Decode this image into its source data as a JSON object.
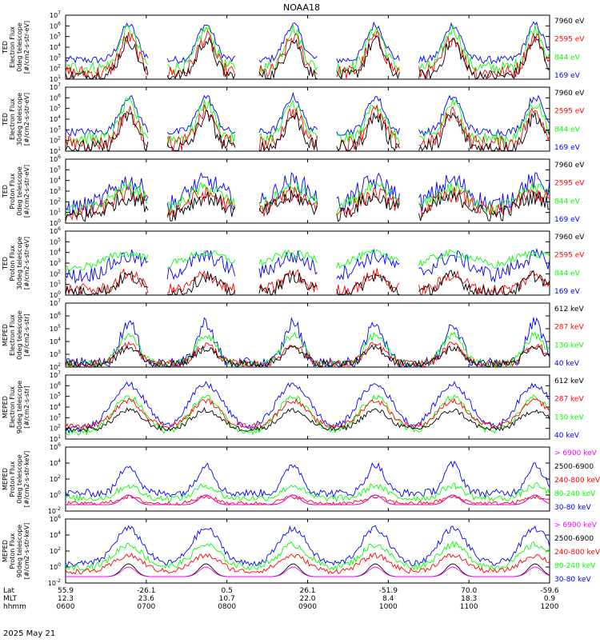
{
  "title": "NOAA18",
  "date_label": "2025 May 21",
  "footer": {
    "rows": [
      {
        "label": "Lat",
        "values": [
          "55.9",
          "-26.1",
          "0.5",
          "26.1",
          "-51.9",
          "70.0",
          "-59.6"
        ]
      },
      {
        "label": "MLT",
        "values": [
          "12.3",
          "23.6",
          "10.7",
          "22.0",
          "8.4",
          "18.3",
          "0.9"
        ]
      },
      {
        "label": "hhmm",
        "values": [
          "0600",
          "0700",
          "0800",
          "0900",
          "1000",
          "1100",
          "1200"
        ]
      }
    ]
  },
  "colors": {
    "black": "#000000",
    "red": "#ff0000",
    "green": "#00ff00",
    "blue": "#0000ff",
    "magenta": "#ff00ff"
  },
  "chart_data": [
    {
      "type": "line",
      "ylabel": [
        "TED",
        "Electron Flux",
        "0deg telescope",
        "[#/cm2-s-str-eV]"
      ],
      "yscale": "log",
      "ylim_exp": [
        1,
        7
      ],
      "yticks_exp": [
        1,
        2,
        3,
        4,
        5,
        6,
        7
      ],
      "xlim": [
        "0600",
        "1200"
      ],
      "series": [
        {
          "name": "7960 eV",
          "color": "#000000"
        },
        {
          "name": "2595 eV",
          "color": "#ff0000"
        },
        {
          "name": "844 eV",
          "color": "#00ff00"
        },
        {
          "name": "169 eV",
          "color": "#0000ff"
        }
      ]
    },
    {
      "type": "line",
      "ylabel": [
        "TED",
        "Electron Flux",
        "30deg telescope",
        "[#/cm2-s-str-eV]"
      ],
      "yscale": "log",
      "ylim_exp": [
        1,
        7
      ],
      "yticks_exp": [
        1,
        2,
        3,
        4,
        5,
        6,
        7
      ],
      "xlim": [
        "0600",
        "1200"
      ],
      "series": [
        {
          "name": "7960 eV",
          "color": "#000000"
        },
        {
          "name": "2595 eV",
          "color": "#ff0000"
        },
        {
          "name": "844 eV",
          "color": "#00ff00"
        },
        {
          "name": "169 eV",
          "color": "#0000ff"
        }
      ]
    },
    {
      "type": "line",
      "ylabel": [
        "TED",
        "Proton Flux",
        "0deg telescope",
        "[#/cm2-s-str-eV]"
      ],
      "yscale": "log",
      "ylim_exp": [
        0,
        6
      ],
      "yticks_exp": [
        0,
        1,
        2,
        3,
        4,
        5,
        6
      ],
      "xlim": [
        "0600",
        "1200"
      ],
      "series": [
        {
          "name": "7960 eV",
          "color": "#000000"
        },
        {
          "name": "2595 eV",
          "color": "#ff0000"
        },
        {
          "name": "844 eV",
          "color": "#00ff00"
        },
        {
          "name": "169 eV",
          "color": "#0000ff"
        }
      ]
    },
    {
      "type": "line",
      "ylabel": [
        "TED",
        "Proton Flux",
        "30deg telescope",
        "[#/cm2-s-str-eV]"
      ],
      "yscale": "log",
      "ylim_exp": [
        0,
        6
      ],
      "yticks_exp": [
        0,
        1,
        2,
        3,
        4,
        5,
        6
      ],
      "xlim": [
        "0600",
        "1200"
      ],
      "series": [
        {
          "name": "7960 eV",
          "color": "#000000"
        },
        {
          "name": "2595 eV",
          "color": "#ff0000"
        },
        {
          "name": "844 eV",
          "color": "#00ff00"
        },
        {
          "name": "169 eV",
          "color": "#0000ff"
        }
      ]
    },
    {
      "type": "line",
      "ylabel": [
        "MEPED",
        "Electron Flux",
        "0deg telescope",
        "[#/cm2-s-str]"
      ],
      "yscale": "log",
      "ylim_exp": [
        2,
        7
      ],
      "yticks_exp": [
        2,
        3,
        4,
        5,
        6,
        7
      ],
      "xlim": [
        "0600",
        "1200"
      ],
      "series": [
        {
          "name": "612 keV",
          "color": "#000000"
        },
        {
          "name": "287 keV",
          "color": "#ff0000"
        },
        {
          "name": "130 keV",
          "color": "#00ff00"
        },
        {
          "name": "40 keV",
          "color": "#0000ff"
        }
      ]
    },
    {
      "type": "line",
      "ylabel": [
        "MEPED",
        "Electron Flux",
        "90deg telescope",
        "[#/cm2-s-str]"
      ],
      "yscale": "log",
      "ylim_exp": [
        1,
        7
      ],
      "yticks_exp": [
        1,
        2,
        3,
        4,
        5,
        6,
        7
      ],
      "xlim": [
        "0600",
        "1200"
      ],
      "series": [
        {
          "name": "612 keV",
          "color": "#000000"
        },
        {
          "name": "287 keV",
          "color": "#ff0000"
        },
        {
          "name": "130 keV",
          "color": "#00ff00"
        },
        {
          "name": "40 keV",
          "color": "#0000ff"
        }
      ]
    },
    {
      "type": "line",
      "ylabel": [
        "MEPED",
        "Proton Flux",
        "0deg telescope",
        "[#/cm2-s-str-keV]"
      ],
      "yscale": "log",
      "ylim_exp": [
        -2,
        6
      ],
      "yticks_exp": [
        -2,
        0,
        2,
        4,
        6
      ],
      "xlim": [
        "0600",
        "1200"
      ],
      "series": [
        {
          "name": "> 6900 keV",
          "color": "#ff00ff"
        },
        {
          "name": "2500-6900",
          "color": "#000000"
        },
        {
          "name": "240-800 keV",
          "color": "#ff0000"
        },
        {
          "name": "80-240 keV",
          "color": "#00ff00"
        },
        {
          "name": "30-80 keV",
          "color": "#0000ff"
        }
      ]
    },
    {
      "type": "line",
      "ylabel": [
        "MEPED",
        "Proton Flux",
        "90deg telescope",
        "[#/cm2-s-str-keV]"
      ],
      "yscale": "log",
      "ylim_exp": [
        -2,
        6
      ],
      "yticks_exp": [
        -2,
        0,
        2,
        4,
        6
      ],
      "xlim": [
        "0600",
        "1200"
      ],
      "series": [
        {
          "name": "> 6900 keV",
          "color": "#ff00ff"
        },
        {
          "name": "2500-6900",
          "color": "#000000"
        },
        {
          "name": "240-800 keV",
          "color": "#ff0000"
        },
        {
          "name": "80-240 keV",
          "color": "#00ff00"
        },
        {
          "name": "30-80 keV",
          "color": "#0000ff"
        }
      ]
    }
  ]
}
